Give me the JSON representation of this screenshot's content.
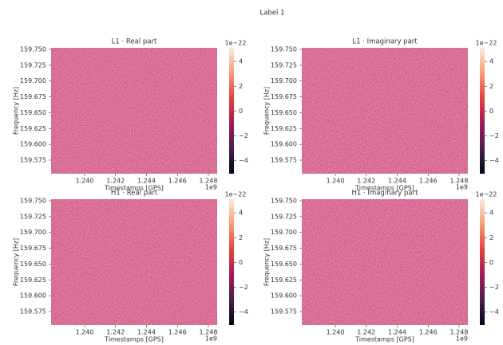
{
  "title": "Label 1",
  "chart_data": [
    {
      "type": "heatmap",
      "title": "L1 · Real part",
      "xlabel": "Timestamps [GPS]",
      "ylabel": "Frequency [Hz]",
      "xlim": [
        1237830000,
        1248570000
      ],
      "xticks": [
        {
          "value": 1240000000,
          "label": "1.240"
        },
        {
          "value": 1242000000,
          "label": "1.242"
        },
        {
          "value": 1244000000,
          "label": "1.244"
        },
        {
          "value": 1246000000,
          "label": "1.246"
        },
        {
          "value": 1248000000,
          "label": "1.248"
        }
      ],
      "x_offset": "1e9",
      "ylim": [
        159.5536,
        159.7525
      ],
      "yticks": [
        {
          "value": 159.575,
          "label": "159.575"
        },
        {
          "value": 159.6,
          "label": "159.600"
        },
        {
          "value": 159.625,
          "label": "159.625"
        },
        {
          "value": 159.65,
          "label": "159.650"
        },
        {
          "value": 159.675,
          "label": "159.675"
        },
        {
          "value": 159.7,
          "label": "159.700"
        },
        {
          "value": 159.725,
          "label": "159.725"
        },
        {
          "value": 159.75,
          "label": "159.750"
        }
      ],
      "clim": [
        -5.05e-22,
        5.1e-22
      ],
      "cticks": [
        {
          "value": -4e-22,
          "label": "−4"
        },
        {
          "value": -2e-22,
          "label": "−2"
        },
        {
          "value": 0,
          "label": "0"
        },
        {
          "value": 2e-22,
          "label": "2"
        },
        {
          "value": 4e-22,
          "label": "4"
        }
      ],
      "c_offset": "1e−22"
    },
    {
      "type": "heatmap",
      "title": "L1 · Imaginary part",
      "xlabel": "Timestamps [GPS]",
      "ylabel": "Frequency [Hz]",
      "xlim": [
        1237830000,
        1248570000
      ],
      "xticks": [
        {
          "value": 1240000000,
          "label": "1.240"
        },
        {
          "value": 1242000000,
          "label": "1.242"
        },
        {
          "value": 1244000000,
          "label": "1.244"
        },
        {
          "value": 1246000000,
          "label": "1.246"
        },
        {
          "value": 1248000000,
          "label": "1.248"
        }
      ],
      "x_offset": "1e9",
      "ylim": [
        159.5536,
        159.7525
      ],
      "yticks": [
        {
          "value": 159.575,
          "label": "159.575"
        },
        {
          "value": 159.6,
          "label": "159.600"
        },
        {
          "value": 159.625,
          "label": "159.625"
        },
        {
          "value": 159.65,
          "label": "159.650"
        },
        {
          "value": 159.675,
          "label": "159.675"
        },
        {
          "value": 159.7,
          "label": "159.700"
        },
        {
          "value": 159.725,
          "label": "159.725"
        },
        {
          "value": 159.75,
          "label": "159.750"
        }
      ],
      "clim": [
        -5.05e-22,
        5.1e-22
      ],
      "cticks": [
        {
          "value": -4e-22,
          "label": "−4"
        },
        {
          "value": -2e-22,
          "label": "−2"
        },
        {
          "value": 0,
          "label": "0"
        },
        {
          "value": 2e-22,
          "label": "2"
        },
        {
          "value": 4e-22,
          "label": "4"
        }
      ],
      "c_offset": "1e−22"
    },
    {
      "type": "heatmap",
      "title": "H1 · Real part",
      "xlabel": "Timestamps [GPS]",
      "ylabel": "Frequency [Hz]",
      "xlim": [
        1237830000,
        1248570000
      ],
      "xticks": [
        {
          "value": 1240000000,
          "label": "1.240"
        },
        {
          "value": 1242000000,
          "label": "1.242"
        },
        {
          "value": 1244000000,
          "label": "1.244"
        },
        {
          "value": 1246000000,
          "label": "1.246"
        },
        {
          "value": 1248000000,
          "label": "1.248"
        }
      ],
      "x_offset": "1e9",
      "ylim": [
        159.5536,
        159.7525
      ],
      "yticks": [
        {
          "value": 159.575,
          "label": "159.575"
        },
        {
          "value": 159.6,
          "label": "159.600"
        },
        {
          "value": 159.625,
          "label": "159.625"
        },
        {
          "value": 159.65,
          "label": "159.650"
        },
        {
          "value": 159.675,
          "label": "159.675"
        },
        {
          "value": 159.7,
          "label": "159.700"
        },
        {
          "value": 159.725,
          "label": "159.725"
        },
        {
          "value": 159.75,
          "label": "159.750"
        }
      ],
      "clim": [
        -5.05e-22,
        5.1e-22
      ],
      "cticks": [
        {
          "value": -4e-22,
          "label": "−4"
        },
        {
          "value": -2e-22,
          "label": "−2"
        },
        {
          "value": 0,
          "label": "0"
        },
        {
          "value": 2e-22,
          "label": "2"
        },
        {
          "value": 4e-22,
          "label": "4"
        }
      ],
      "c_offset": "1e−22"
    },
    {
      "type": "heatmap",
      "title": "H1 · Imaginary part",
      "xlabel": "Timestamps [GPS]",
      "ylabel": "Frequency [Hz]",
      "xlim": [
        1237830000,
        1248570000
      ],
      "xticks": [
        {
          "value": 1240000000,
          "label": "1.240"
        },
        {
          "value": 1242000000,
          "label": "1.242"
        },
        {
          "value": 1244000000,
          "label": "1.244"
        },
        {
          "value": 1246000000,
          "label": "1.246"
        },
        {
          "value": 1248000000,
          "label": "1.248"
        }
      ],
      "x_offset": "1e9",
      "ylim": [
        159.5536,
        159.7525
      ],
      "yticks": [
        {
          "value": 159.575,
          "label": "159.575"
        },
        {
          "value": 159.6,
          "label": "159.600"
        },
        {
          "value": 159.625,
          "label": "159.625"
        },
        {
          "value": 159.65,
          "label": "159.650"
        },
        {
          "value": 159.675,
          "label": "159.675"
        },
        {
          "value": 159.7,
          "label": "159.700"
        },
        {
          "value": 159.725,
          "label": "159.725"
        },
        {
          "value": 159.75,
          "label": "159.750"
        }
      ],
      "clim": [
        -5.05e-22,
        5.1e-22
      ],
      "cticks": [
        {
          "value": -4e-22,
          "label": "−4"
        },
        {
          "value": -2e-22,
          "label": "−2"
        },
        {
          "value": 0,
          "label": "0"
        },
        {
          "value": 2e-22,
          "label": "2"
        },
        {
          "value": 4e-22,
          "label": "4"
        }
      ],
      "c_offset": "1e−22"
    }
  ]
}
